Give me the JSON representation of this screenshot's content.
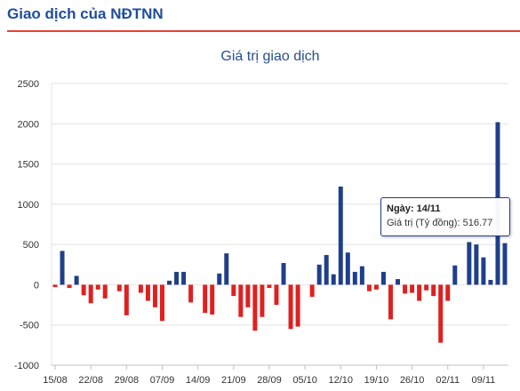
{
  "header": {
    "title": "Giao dịch của NĐTNN"
  },
  "colors": {
    "positive": "#1f3f8a",
    "negative": "#e02020",
    "accent": "#e8402f",
    "title": "#1f4e9c"
  },
  "tooltip": {
    "date_label": "Ngày: 14/11",
    "value_label": "Giá trị (Tỷ đồng):",
    "value": "516.77"
  },
  "chart_data": {
    "type": "bar",
    "title": "Giá trị giao dịch",
    "xlabel": "",
    "ylabel": "",
    "ylim": [
      -1000,
      2500
    ],
    "yticks": [
      2500,
      2000,
      1500,
      1000,
      500,
      0,
      -500,
      -1000
    ],
    "grid": true,
    "x_tick_labels": [
      "15/08",
      "22/08",
      "29/08",
      "07/09",
      "14/09",
      "21/09",
      "28/09",
      "05/10",
      "12/10",
      "19/10",
      "26/10",
      "02/11",
      "09/11"
    ],
    "x_tick_indices": [
      0,
      5,
      10,
      15,
      20,
      25,
      30,
      35,
      40,
      45,
      50,
      55,
      60
    ],
    "values": [
      -30,
      420,
      -40,
      110,
      -130,
      -230,
      -60,
      -170,
      0,
      -80,
      -380,
      0,
      -100,
      -200,
      -280,
      -450,
      50,
      160,
      160,
      -220,
      0,
      -350,
      -370,
      140,
      390,
      -140,
      -400,
      -280,
      -570,
      -400,
      -40,
      -250,
      270,
      -550,
      -520,
      0,
      -150,
      250,
      370,
      130,
      1220,
      400,
      160,
      230,
      -80,
      -60,
      160,
      -430,
      70,
      -110,
      -100,
      -200,
      -70,
      -140,
      -720,
      -200,
      240,
      0,
      530,
      500,
      340,
      60,
      2020,
      516.77
    ]
  }
}
